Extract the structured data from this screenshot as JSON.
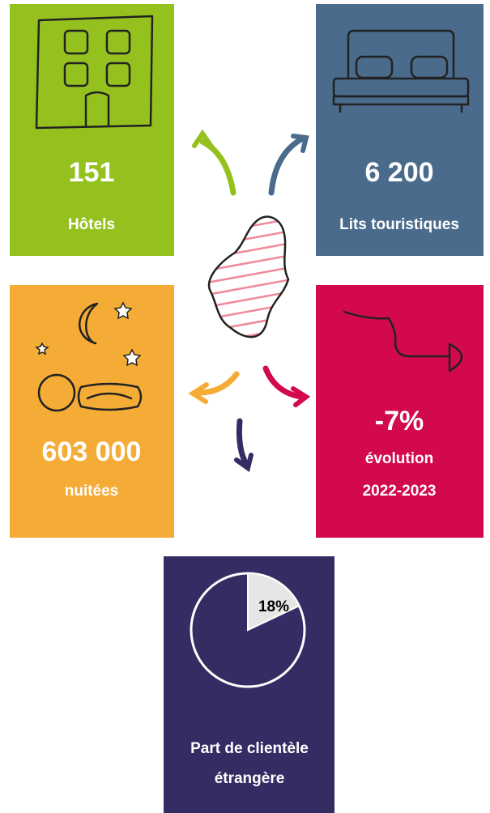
{
  "tiles": [
    {
      "value": "151",
      "label": "Hôtels"
    },
    {
      "value": "6 200",
      "label": "Lits touristiques"
    },
    {
      "value": "603 000",
      "label": "nuitées"
    },
    {
      "value": "-7%",
      "label": "évolution",
      "sublabel": "2022-2023"
    }
  ],
  "share": {
    "values": [
      18
    ],
    "value_labels": [
      "18%"
    ],
    "label_lines": [
      "Part de clientèle",
      "étrangère"
    ]
  }
}
